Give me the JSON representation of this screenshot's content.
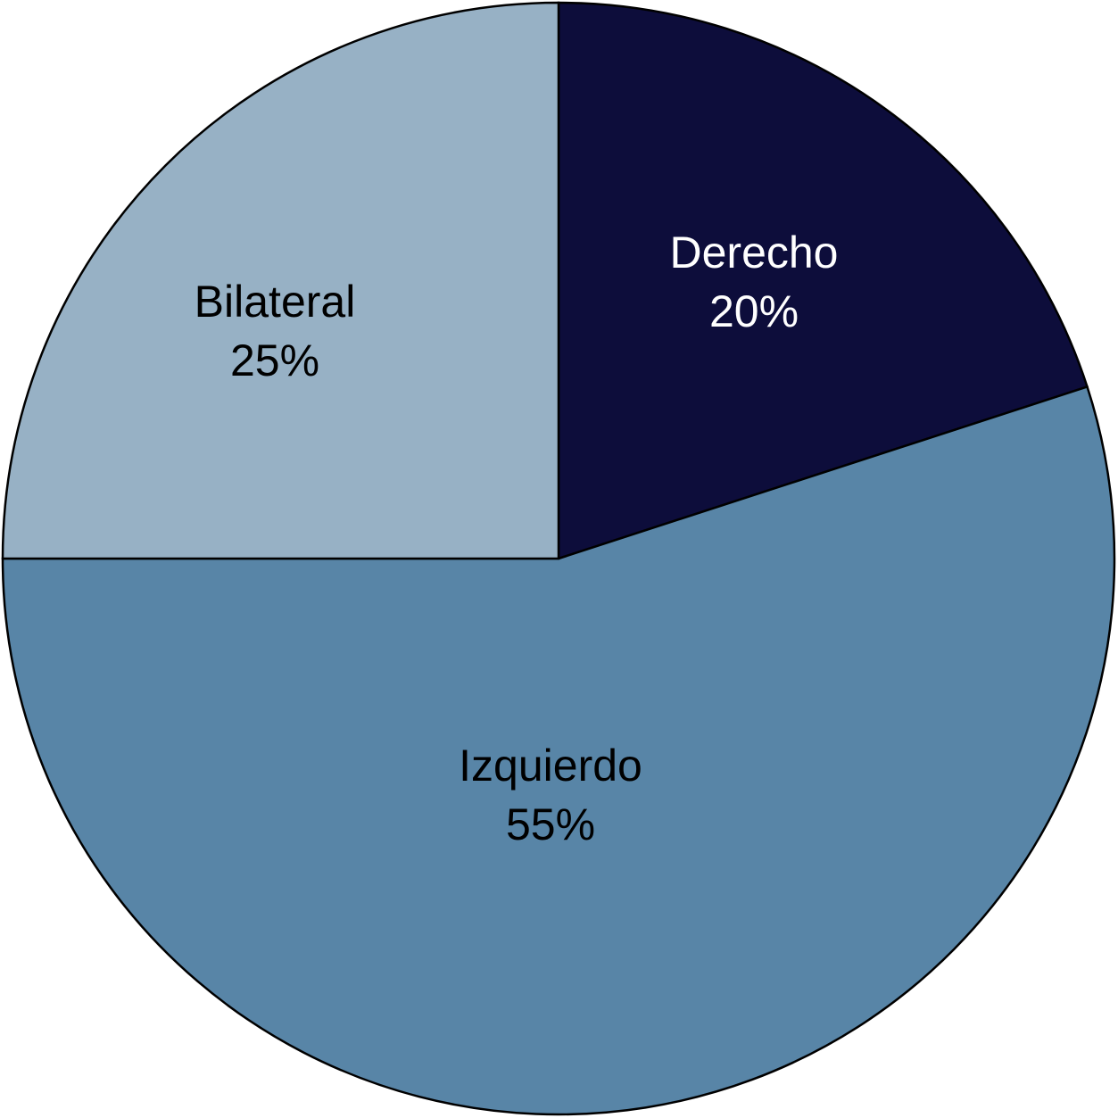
{
  "chart_data": {
    "type": "pie",
    "start_angle": "12 o'clock",
    "direction": "clockwise",
    "slices": [
      {
        "label": "Derecho",
        "value": 20,
        "value_label": "20%",
        "color": "#0d0d3b",
        "text_color": "#ffffff"
      },
      {
        "label": "Izquierdo",
        "value": 55,
        "value_label": "55%",
        "color": "#5885a7",
        "text_color": "#000000"
      },
      {
        "label": "Bilateral",
        "value": 25,
        "value_label": "25%",
        "color": "#97b1c5",
        "text_color": "#000000"
      }
    ]
  }
}
